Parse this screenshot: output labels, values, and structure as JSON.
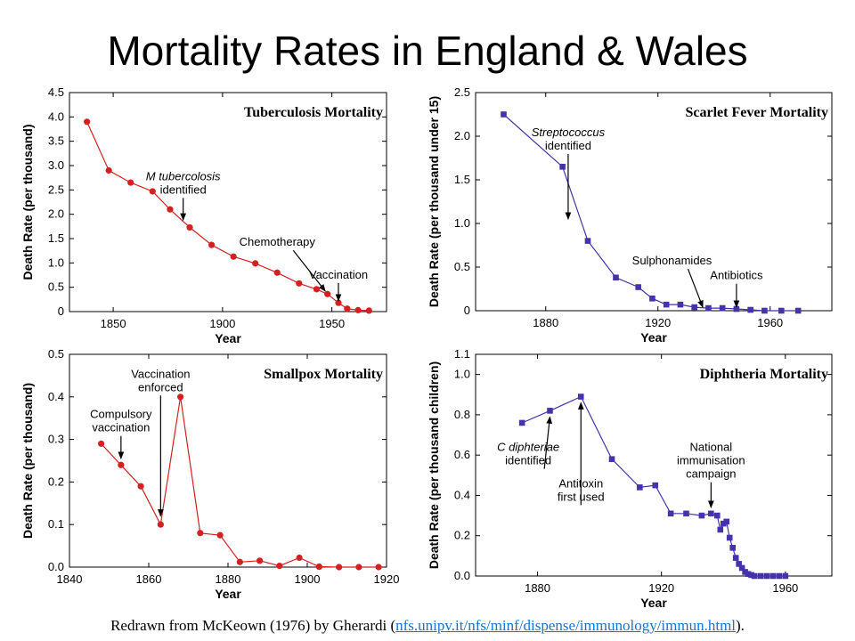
{
  "page": {
    "title": "Mortality Rates in England & Wales",
    "source_prefix": "Redrawn from McKeown (1976) by Gherardi (",
    "source_link": "nfs.unipv.it/nfs/minf/dispense/immunology/immun.html",
    "source_suffix": ")."
  },
  "chart_data": [
    {
      "type": "line",
      "title": "Tuberculosis Mortality",
      "xlabel": "Year",
      "ylabel": "Death Rate (per thousand)",
      "xlim": [
        1830,
        1975
      ],
      "ylim": [
        0,
        4.5
      ],
      "xticks": [
        1850,
        1900,
        1950
      ],
      "yticks": [
        0,
        0.5,
        1.0,
        1.5,
        2.0,
        2.5,
        3.0,
        3.5,
        4.0,
        4.5
      ],
      "ytick_labels": [
        "0",
        "0.5",
        "1.0",
        "1.5",
        "2.0",
        "2.5",
        "3.0",
        "3.5",
        "4.0",
        "4.5"
      ],
      "color": "#d42020",
      "marker": "circle",
      "grid": false,
      "x": [
        1838,
        1848,
        1858,
        1868,
        1876,
        1885,
        1895,
        1905,
        1915,
        1925,
        1935,
        1943,
        1948,
        1953,
        1957,
        1962,
        1967
      ],
      "y": [
        3.9,
        2.9,
        2.65,
        2.47,
        2.1,
        1.73,
        1.37,
        1.13,
        0.99,
        0.8,
        0.58,
        0.46,
        0.36,
        0.18,
        0.06,
        0.03,
        0.02
      ],
      "annotations": [
        {
          "lines": [
            "M tubercolosis",
            "identified"
          ],
          "italic_first": true,
          "x": 1882,
          "y": 2.7,
          "arrow_to": [
            1882,
            1.88
          ]
        },
        {
          "lines": [
            "Chemotherapy"
          ],
          "x": 1925,
          "y": 1.35,
          "arrow_to": [
            1947,
            0.42
          ]
        },
        {
          "lines": [
            "Vaccination"
          ],
          "x": 1953,
          "y": 0.68,
          "arrow_to": [
            1953,
            0.22
          ]
        }
      ]
    },
    {
      "type": "line",
      "title": "Scarlet Fever Mortality",
      "xlabel": "Year",
      "ylabel": "Death Rate (per thousand under 15)",
      "xlim": [
        1855,
        1982
      ],
      "ylim": [
        0,
        2.5
      ],
      "xticks": [
        1880,
        1920,
        1960
      ],
      "yticks": [
        0,
        0.5,
        1.0,
        1.5,
        2.0,
        2.5
      ],
      "ytick_labels": [
        "0",
        "0.5",
        "1.0",
        "1.5",
        "2.0",
        "2.5"
      ],
      "color": "#4433aa",
      "marker": "square",
      "grid": false,
      "x": [
        1865,
        1886,
        1895,
        1905,
        1913,
        1918,
        1923,
        1928,
        1933,
        1938,
        1943,
        1948,
        1953,
        1958,
        1964,
        1970
      ],
      "y": [
        2.25,
        1.65,
        0.8,
        0.38,
        0.27,
        0.14,
        0.07,
        0.07,
        0.04,
        0.03,
        0.03,
        0.02,
        0.01,
        0.0,
        0.0,
        0.0
      ],
      "annotations": [
        {
          "lines": [
            "Streptococcus",
            "identified"
          ],
          "italic_first": true,
          "x": 1888,
          "y": 2.0,
          "arrow_to": [
            1888,
            1.05
          ]
        },
        {
          "lines": [
            "Sulphonamides"
          ],
          "x": 1925,
          "y": 0.53,
          "arrow_to": [
            1936,
            0.04
          ]
        },
        {
          "lines": [
            "Antibiotics"
          ],
          "x": 1948,
          "y": 0.36,
          "arrow_to": [
            1948,
            0.04
          ]
        }
      ]
    },
    {
      "type": "line",
      "title": "Smallpox Mortality",
      "xlabel": "Year",
      "ylabel": "Death Rate (per thousand)",
      "xlim": [
        1840,
        1920
      ],
      "ylim": [
        0,
        0.5
      ],
      "xticks": [
        1840,
        1860,
        1880,
        1900,
        1920
      ],
      "yticks": [
        0,
        0.1,
        0.2,
        0.3,
        0.4,
        0.5
      ],
      "ytick_labels": [
        "0.0",
        "0.1",
        "0.2",
        "0.3",
        "0.4",
        "0.5"
      ],
      "color": "#d42020",
      "marker": "circle",
      "grid": false,
      "x": [
        1848,
        1853,
        1858,
        1863,
        1868,
        1873,
        1878,
        1883,
        1888,
        1893,
        1898,
        1903,
        1908,
        1913,
        1918
      ],
      "y": [
        0.29,
        0.24,
        0.19,
        0.1,
        0.4,
        0.08,
        0.075,
        0.012,
        0.015,
        0.003,
        0.022,
        0.001,
        0.0,
        0.0,
        0.0
      ],
      "annotations": [
        {
          "lines": [
            "Compulsory",
            "vaccination"
          ],
          "x": 1853,
          "y": 0.35,
          "arrow_to": [
            1853,
            0.255
          ]
        },
        {
          "lines": [
            "Vaccination",
            "enforced"
          ],
          "x": 1863,
          "y": 0.445,
          "arrow_to": [
            1863,
            0.12
          ]
        }
      ]
    },
    {
      "type": "line",
      "title": "Diphtheria Mortality",
      "xlabel": "Year",
      "ylabel": "Death Rate (per thousand children)",
      "xlim": [
        1860,
        1975
      ],
      "ylim": [
        0,
        1.1
      ],
      "xticks": [
        1880,
        1920,
        1960
      ],
      "yticks": [
        0,
        0.2,
        0.4,
        0.6,
        0.8,
        1.0,
        1.1
      ],
      "ytick_labels": [
        "0.0",
        "0.2",
        "0.4",
        "0.6",
        "0.8",
        "1.0",
        "1.1"
      ],
      "color": "#4433aa",
      "marker": "square",
      "grid": false,
      "x": [
        1875,
        1884,
        1894,
        1904,
        1913,
        1918,
        1923,
        1928,
        1933,
        1936,
        1938,
        1939,
        1940,
        1941,
        1942,
        1943,
        1944,
        1945,
        1946,
        1947,
        1948,
        1949,
        1950,
        1952,
        1954,
        1956,
        1958,
        1960
      ],
      "y": [
        0.76,
        0.82,
        0.89,
        0.58,
        0.44,
        0.45,
        0.31,
        0.31,
        0.3,
        0.31,
        0.3,
        0.23,
        0.26,
        0.27,
        0.19,
        0.14,
        0.09,
        0.06,
        0.04,
        0.02,
        0.01,
        0.005,
        0.0,
        0.0,
        0.0,
        0.0,
        0.0,
        0.0
      ],
      "annotations": [
        {
          "lines": [
            "C diphteriae",
            "identified"
          ],
          "italic_first": true,
          "x": 1877,
          "y": 0.62,
          "arrow_to": [
            1884,
            0.79
          ]
        },
        {
          "lines": [
            "Antitoxin",
            "first used"
          ],
          "x": 1894,
          "y": 0.44,
          "arrow_to": [
            1894,
            0.86
          ]
        },
        {
          "lines": [
            "National",
            "immunisation",
            "campaign"
          ],
          "x": 1936,
          "y": 0.62,
          "arrow_to": [
            1936,
            0.34
          ]
        }
      ]
    }
  ]
}
